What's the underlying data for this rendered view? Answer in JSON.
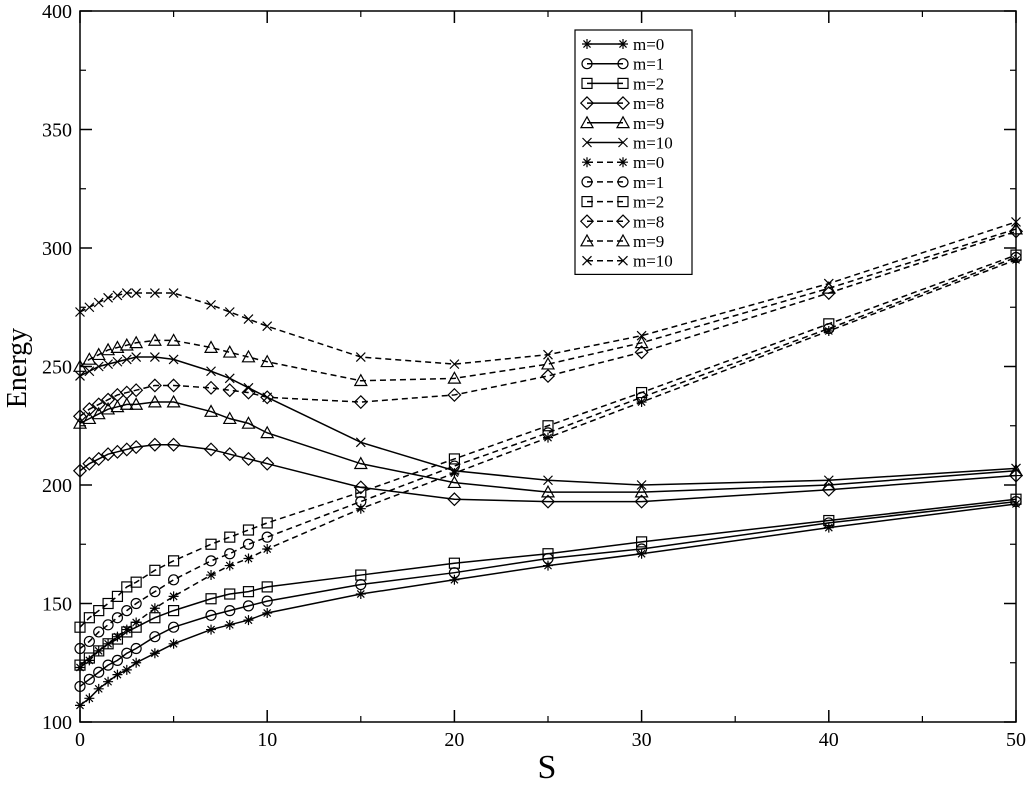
{
  "chart_data": {
    "type": "line",
    "title": "",
    "xlabel": "S",
    "ylabel": "Energy",
    "xlim": [
      0,
      50
    ],
    "ylim": [
      100,
      400
    ],
    "xticks": [
      "0",
      "10",
      "20",
      "30",
      "40",
      "50"
    ],
    "yticks": [
      "100",
      "150",
      "200",
      "250",
      "300",
      "350",
      "400"
    ],
    "grid": false,
    "legend_position": "top-center",
    "series": [
      {
        "name": "m=0",
        "style": "solid",
        "marker": "asterisk",
        "x": [
          0,
          0.5,
          1,
          1.5,
          2,
          2.5,
          3,
          4,
          5,
          7,
          8,
          9,
          10,
          15,
          20,
          25,
          30,
          40,
          50
        ],
        "y": [
          107,
          110,
          114,
          117,
          120,
          122,
          125,
          129,
          133,
          139,
          141,
          143,
          146,
          154,
          160,
          166,
          171,
          182,
          192
        ]
      },
      {
        "name": "m=1",
        "style": "solid",
        "marker": "circle",
        "x": [
          0,
          0.5,
          1,
          1.5,
          2,
          2.5,
          3,
          4,
          5,
          7,
          8,
          9,
          10,
          15,
          20,
          25,
          30,
          40,
          50
        ],
        "y": [
          115,
          118,
          121,
          124,
          126,
          129,
          131,
          136,
          140,
          145,
          147,
          149,
          151,
          158,
          163,
          169,
          173,
          184,
          193
        ]
      },
      {
        "name": "m=2",
        "style": "solid",
        "marker": "square",
        "x": [
          0,
          0.5,
          1,
          1.5,
          2,
          2.5,
          3,
          4,
          5,
          7,
          8,
          9,
          10,
          15,
          20,
          25,
          30,
          40,
          50
        ],
        "y": [
          124,
          127,
          130,
          133,
          135,
          138,
          140,
          144,
          147,
          152,
          154,
          155,
          157,
          162,
          167,
          171,
          176,
          185,
          194
        ]
      },
      {
        "name": "m=8",
        "style": "solid",
        "marker": "diamond",
        "x": [
          0,
          0.5,
          1,
          1.5,
          2,
          2.5,
          3,
          4,
          5,
          7,
          8,
          9,
          10,
          15,
          20,
          25,
          30,
          40,
          50
        ],
        "y": [
          206,
          209,
          211,
          213,
          214,
          215,
          216,
          217,
          217,
          215,
          213,
          211,
          209,
          199,
          194,
          193,
          193,
          198,
          204
        ]
      },
      {
        "name": "m=9",
        "style": "solid",
        "marker": "triangle",
        "x": [
          0,
          0.5,
          1,
          1.5,
          2,
          2.5,
          3,
          4,
          5,
          7,
          8,
          9,
          10,
          15,
          20,
          25,
          30,
          40,
          50
        ],
        "y": [
          226,
          228,
          230,
          232,
          233,
          234,
          234,
          235,
          235,
          231,
          228,
          226,
          222,
          209,
          201,
          197,
          197,
          200,
          206
        ]
      },
      {
        "name": "m=10",
        "style": "solid",
        "marker": "x",
        "x": [
          0,
          0.5,
          1,
          1.5,
          2,
          2.5,
          3,
          4,
          5,
          7,
          8,
          9,
          10,
          15,
          20,
          25,
          30,
          40,
          50
        ],
        "y": [
          246,
          248,
          250,
          251,
          252,
          253,
          254,
          254,
          253,
          248,
          245,
          241,
          237,
          218,
          206,
          202,
          200,
          202,
          207
        ]
      },
      {
        "name": "m=0",
        "style": "dashed",
        "marker": "asterisk",
        "x": [
          0,
          0.5,
          1,
          1.5,
          2,
          2.5,
          3,
          4,
          5,
          7,
          8,
          9,
          10,
          15,
          20,
          25,
          30,
          40,
          50
        ],
        "y": [
          123,
          126,
          130,
          133,
          136,
          139,
          142,
          148,
          153,
          162,
          166,
          169,
          173,
          190,
          205,
          220,
          235,
          265,
          295
        ]
      },
      {
        "name": "m=1",
        "style": "dashed",
        "marker": "circle",
        "x": [
          0,
          0.5,
          1,
          1.5,
          2,
          2.5,
          3,
          4,
          5,
          7,
          8,
          9,
          10,
          15,
          20,
          25,
          30,
          40,
          50
        ],
        "y": [
          131,
          134,
          138,
          141,
          144,
          147,
          150,
          155,
          160,
          168,
          171,
          175,
          178,
          193,
          208,
          222,
          237,
          266,
          296
        ]
      },
      {
        "name": "m=2",
        "style": "dashed",
        "marker": "square",
        "x": [
          0,
          0.5,
          1,
          1.5,
          2,
          2.5,
          3,
          4,
          5,
          7,
          8,
          9,
          10,
          15,
          20,
          25,
          30,
          40,
          50
        ],
        "y": [
          140,
          144,
          147,
          150,
          153,
          157,
          159,
          164,
          168,
          175,
          178,
          181,
          184,
          197,
          211,
          225,
          239,
          268,
          297
        ]
      },
      {
        "name": "m=8",
        "style": "dashed",
        "marker": "diamond",
        "x": [
          0,
          0.5,
          1,
          1.5,
          2,
          2.5,
          3,
          4,
          5,
          7,
          8,
          9,
          10,
          15,
          20,
          25,
          30,
          40,
          50
        ],
        "y": [
          229,
          232,
          234,
          236,
          238,
          239,
          240,
          242,
          242,
          241,
          240,
          239,
          237,
          235,
          238,
          246,
          256,
          281,
          307
        ]
      },
      {
        "name": "m=9",
        "style": "dashed",
        "marker": "triangle",
        "x": [
          0,
          0.5,
          1,
          1.5,
          2,
          2.5,
          3,
          4,
          5,
          7,
          8,
          9,
          10,
          15,
          20,
          25,
          30,
          40,
          50
        ],
        "y": [
          250,
          253,
          255,
          257,
          258,
          259,
          260,
          261,
          261,
          258,
          256,
          254,
          252,
          244,
          245,
          251,
          260,
          283,
          308
        ]
      },
      {
        "name": "m=10",
        "style": "dashed",
        "marker": "x",
        "x": [
          0,
          0.5,
          1,
          1.5,
          2,
          2.5,
          3,
          4,
          5,
          7,
          8,
          9,
          10,
          15,
          20,
          25,
          30,
          40,
          50
        ],
        "y": [
          273,
          275,
          277,
          279,
          280,
          281,
          281,
          281,
          281,
          276,
          273,
          270,
          267,
          254,
          251,
          255,
          263,
          285,
          311
        ]
      }
    ]
  }
}
